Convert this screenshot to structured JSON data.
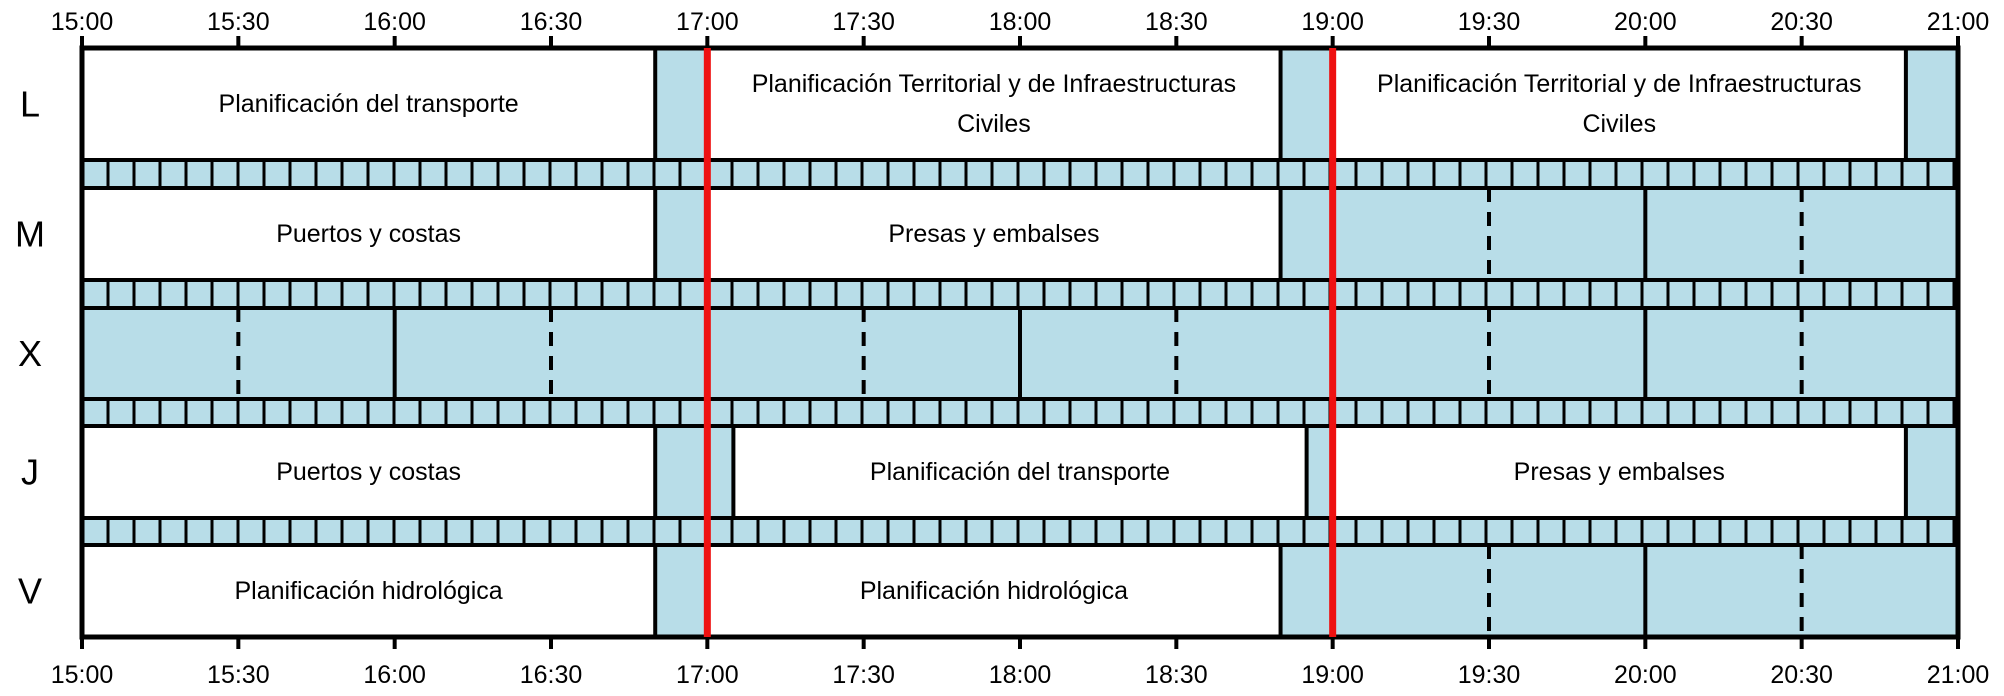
{
  "schedule": {
    "start_hour": 15,
    "end_hour": 21,
    "time_ticks": [
      "15:00",
      "15:30",
      "16:00",
      "16:30",
      "17:00",
      "17:30",
      "18:00",
      "18:30",
      "19:00",
      "19:30",
      "20:00",
      "20:30",
      "21:00"
    ],
    "current_time_markers": [
      "17:00",
      "19:00"
    ],
    "colors": {
      "free": "#b8dde8",
      "class": "#ffffff",
      "border": "#000000",
      "marker": "#ee1111"
    },
    "days": [
      {
        "label": "L",
        "classes": [
          {
            "start": "15:00",
            "end": "16:50",
            "title_lines": [
              "Planificación del transporte"
            ]
          },
          {
            "start": "17:00",
            "end": "18:50",
            "title_lines": [
              "Planificación Territorial y de Infraestructuras",
              "Civiles"
            ]
          },
          {
            "start": "19:00",
            "end": "20:50",
            "title_lines": [
              "Planificación Territorial y de Infraestructuras",
              "Civiles"
            ]
          }
        ]
      },
      {
        "label": "M",
        "classes": [
          {
            "start": "15:00",
            "end": "16:50",
            "title_lines": [
              "Puertos y costas"
            ]
          },
          {
            "start": "17:00",
            "end": "18:50",
            "title_lines": [
              "Presas y embalses"
            ]
          }
        ]
      },
      {
        "label": "X",
        "classes": []
      },
      {
        "label": "J",
        "classes": [
          {
            "start": "15:00",
            "end": "16:50",
            "title_lines": [
              "Puertos y costas"
            ]
          },
          {
            "start": "17:05",
            "end": "18:55",
            "title_lines": [
              "Planificación del transporte"
            ]
          },
          {
            "start": "19:00",
            "end": "20:50",
            "title_lines": [
              "Presas y embalses"
            ]
          }
        ]
      },
      {
        "label": "V",
        "classes": [
          {
            "start": "15:00",
            "end": "16:50",
            "title_lines": [
              "Planificación hidrológica"
            ]
          },
          {
            "start": "17:00",
            "end": "18:50",
            "title_lines": [
              "Planificación hidrológica"
            ]
          }
        ]
      }
    ]
  }
}
